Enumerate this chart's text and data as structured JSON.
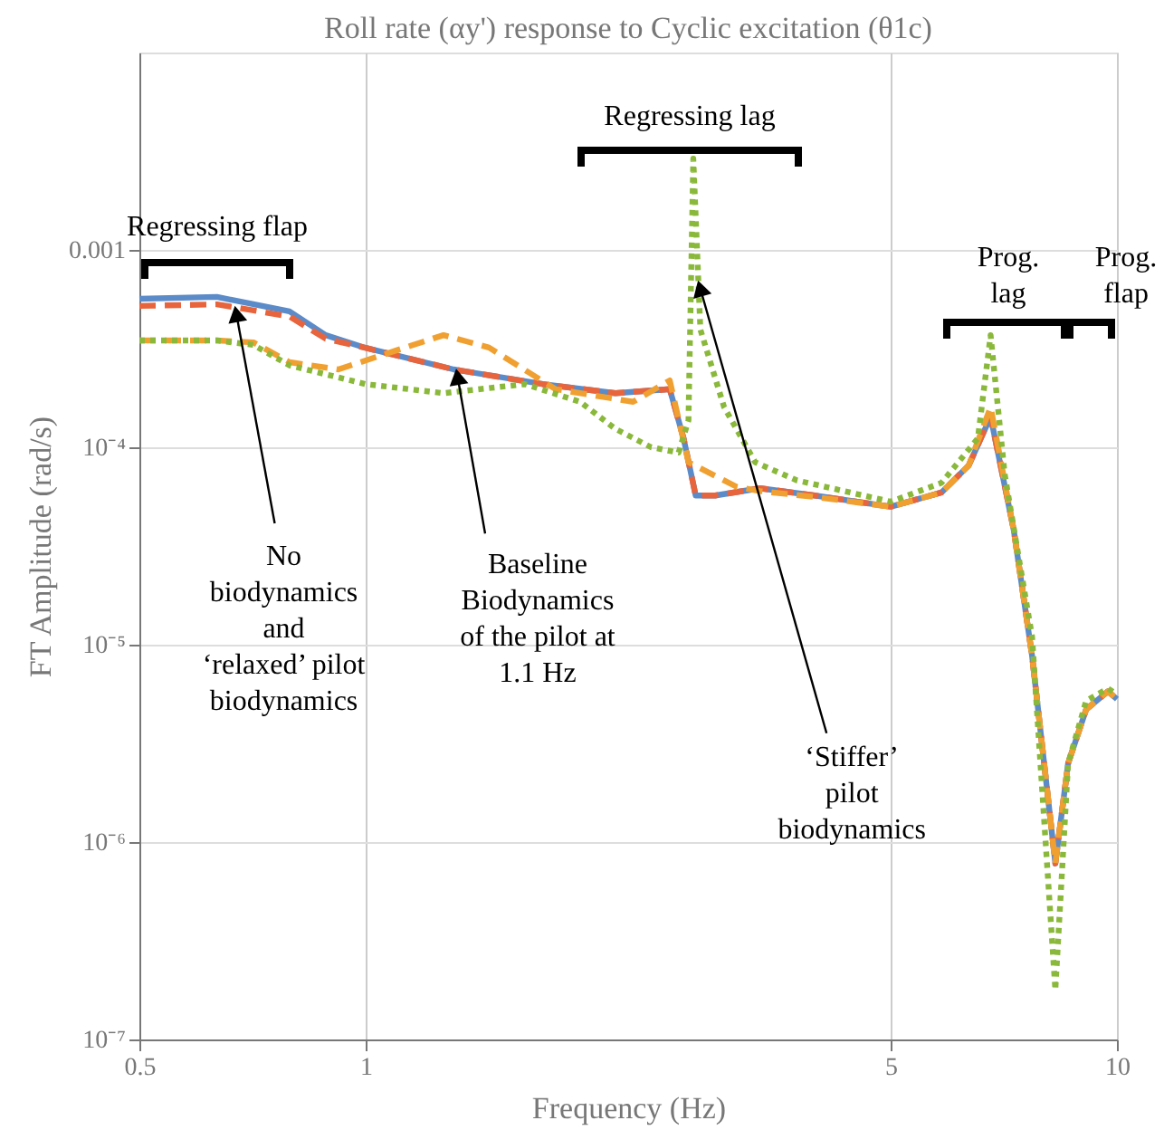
{
  "chart_data": {
    "type": "line",
    "title": "Roll rate (αy') response to Cyclic excitation (θ1c)",
    "xlabel": "Frequency (Hz)",
    "ylabel": "FT Amplitude (rad/s)",
    "log": "xy",
    "grid": true,
    "marker": "none",
    "xlim": [
      0.5,
      10
    ],
    "xticks": [
      0.5,
      1,
      5,
      10
    ],
    "ylim": [
      1e-07,
      0.01
    ],
    "yticks": [
      {
        "value": 1e-07,
        "label": "10⁻⁷"
      },
      {
        "value": 1e-06,
        "label": "10⁻⁶"
      },
      {
        "value": 1e-05,
        "label": "10⁻⁵"
      },
      {
        "value": 0.0001,
        "label": "10⁻⁴"
      },
      0.001
    ],
    "series": [
      {
        "color": "#5b8bc9",
        "line_style": "solid",
        "x": [
          0.5,
          0.634,
          0.792,
          0.885,
          1.0,
          1.31,
          1.72,
          2.15,
          2.54,
          2.65,
          2.75,
          2.92,
          3.35,
          3.96,
          5.0,
          5.84,
          6.35,
          6.79,
          7.29,
          7.71,
          8.28,
          8.61,
          9.1,
          9.73,
          10
        ],
        "values": [
          0.000565,
          0.000578,
          0.000488,
          0.00037,
          0.000319,
          0.000248,
          0.000209,
          0.000188,
          0.000197,
          0.000111,
          5.7e-05,
          5.7e-05,
          6.2e-05,
          5.7e-05,
          5e-05,
          5.9e-05,
          8.1e-05,
          0.000143,
          3.8e-05,
          8.8e-06,
          7.8e-07,
          2.5e-06,
          4.7e-06,
          5.8e-06,
          5.3e-06
        ]
      },
      {
        "color": "#e8643c",
        "line_style": "dashed",
        "x": [
          0.5,
          0.634,
          0.792,
          0.885,
          1.0,
          1.31,
          1.72,
          2.15,
          2.54,
          2.65,
          2.75,
          2.92,
          3.35,
          3.96,
          5.0,
          5.84,
          6.35,
          6.79,
          7.29,
          7.71,
          8.28,
          8.61,
          9.1,
          9.73,
          10
        ],
        "values": [
          0.00052,
          0.00053,
          0.00046,
          0.000355,
          0.000319,
          0.000248,
          0.000209,
          0.000188,
          0.000197,
          0.000111,
          5.7e-05,
          5.7e-05,
          6.2e-05,
          5.7e-05,
          5e-05,
          5.9e-05,
          8.1e-05,
          0.000143,
          3.8e-05,
          8.8e-06,
          7.8e-07,
          2.5e-06,
          4.7e-06,
          5.8e-06,
          5.3e-06
        ]
      },
      {
        "color": "#f0a030",
        "line_style": "dashed",
        "x": [
          0.5,
          0.634,
          0.709,
          0.792,
          0.92,
          1.1,
          1.27,
          1.46,
          1.79,
          2.27,
          2.54,
          2.69,
          3.12,
          3.35,
          3.96,
          5.0,
          5.84,
          6.35,
          6.79,
          7.29,
          7.71,
          8.28,
          8.61,
          9.1,
          9.73,
          10
        ],
        "values": [
          0.000348,
          0.000348,
          0.00034,
          0.00027,
          0.000248,
          0.00031,
          0.00037,
          0.00032,
          0.000197,
          0.00017,
          0.000218,
          8.4e-05,
          6.3e-05,
          6e-05,
          5.6e-05,
          5e-05,
          5.9e-05,
          8.1e-05,
          0.00016,
          3.8e-05,
          8.8e-06,
          7.8e-07,
          2.5e-06,
          4.7e-06,
          5.8e-06,
          5.3e-06
        ]
      },
      {
        "color": "#8ab83a",
        "line_style": "dotted",
        "x": [
          0.5,
          0.634,
          0.709,
          0.792,
          1.0,
          1.27,
          1.63,
          1.93,
          2.15,
          2.4,
          2.61,
          2.69,
          2.73,
          2.79,
          3.0,
          3.3,
          3.75,
          5.0,
          5.84,
          6.53,
          6.79,
          7.09,
          7.71,
          8.28,
          8.61,
          9.1,
          9.73,
          10
        ],
        "values": [
          0.000348,
          0.000348,
          0.00033,
          0.00026,
          0.000209,
          0.000188,
          0.000209,
          0.00017,
          0.000124,
          0.0001,
          9.4e-05,
          0.000137,
          0.0029,
          0.000395,
          0.00016,
          8.4e-05,
          6.8e-05,
          5.3e-05,
          6.6e-05,
          0.000111,
          0.00037,
          7.3e-05,
          1.1e-05,
          1.78e-07,
          2.5e-06,
          5.2e-06,
          6e-06,
          5.6e-06
        ]
      }
    ],
    "annotations": [
      "Regressing flap",
      "Regressing lag",
      "Prog.\nlag",
      "Prog.\nflap",
      {
        "text": "No\nbiodynamics\nand\n‘relaxed’ pilot\nbiodynamics",
        "x": 0.67,
        "y": 0.00052
      },
      {
        "text": "Baseline\nBiodynamics\nof the pilot at\n1.1 Hz",
        "x": 1.32,
        "y": 0.00025
      },
      {
        "text": "‘Stiffer’\npilot\nbiodynamics",
        "x": 2.77,
        "y": 0.0007
      }
    ]
  }
}
